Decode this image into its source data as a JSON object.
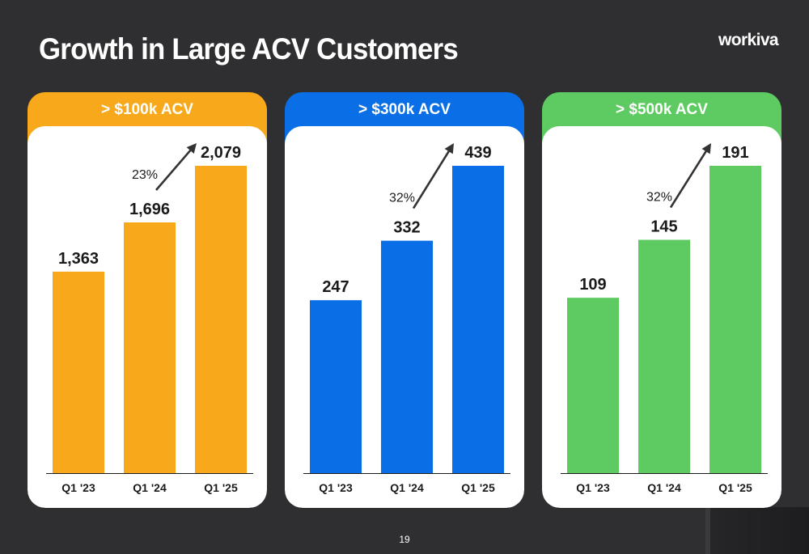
{
  "title": "Growth in Large ACV Customers",
  "logo": "workiva",
  "page_number": "19",
  "chart_data": [
    {
      "type": "bar",
      "title": "> $100k ACV",
      "color": "#f8a91b",
      "categories": [
        "Q1 '23",
        "Q1 '24",
        "Q1 '25"
      ],
      "values": [
        1363,
        1696,
        2079
      ],
      "value_labels": [
        "1,363",
        "1,696",
        "2,079"
      ],
      "growth_label": "23%"
    },
    {
      "type": "bar",
      "title": "> $300k ACV",
      "color": "#0a6fe6",
      "categories": [
        "Q1 '23",
        "Q1 '24",
        "Q1 '25"
      ],
      "values": [
        247,
        332,
        439
      ],
      "value_labels": [
        "247",
        "332",
        "439"
      ],
      "growth_label": "32%"
    },
    {
      "type": "bar",
      "title": "> $500k ACV",
      "color": "#5ecb62",
      "categories": [
        "Q1 '23",
        "Q1 '24",
        "Q1 '25"
      ],
      "values": [
        109,
        145,
        191
      ],
      "value_labels": [
        "109",
        "145",
        "191"
      ],
      "growth_label": "32%"
    }
  ]
}
